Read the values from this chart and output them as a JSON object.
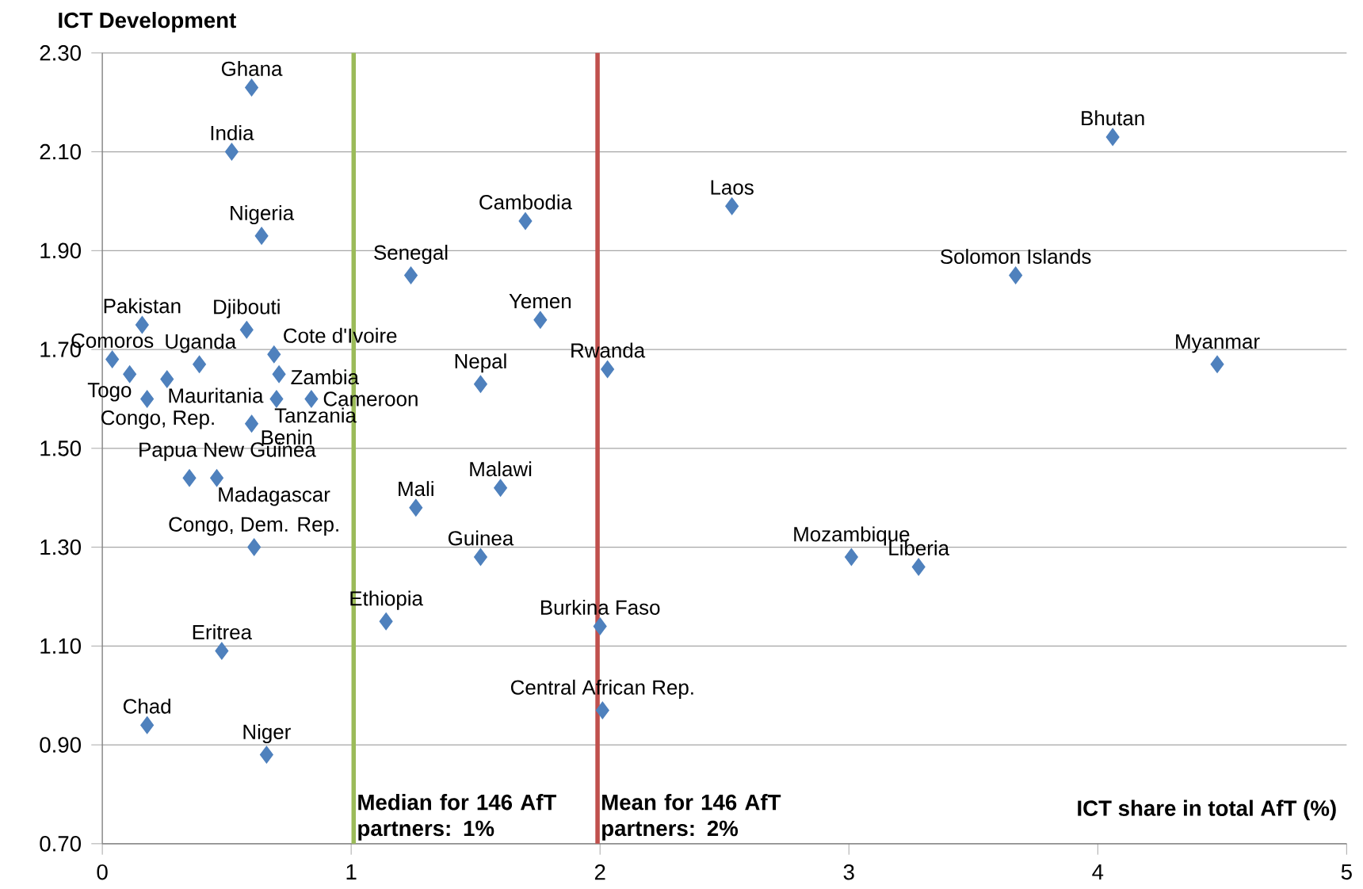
{
  "chart_data": {
    "type": "scatter",
    "xlabel": "ICT share in total AfT (%)",
    "ylabel": "ICT Development",
    "xlim": [
      0,
      5
    ],
    "ylim": [
      0.7,
      2.3
    ],
    "xticks": [
      0,
      1,
      2,
      3,
      4,
      5
    ],
    "yticks": [
      {
        "value": 0.7,
        "label": "0.70"
      },
      {
        "value": 0.9,
        "label": "0.90"
      },
      {
        "value": 1.1,
        "label": "1.10"
      },
      {
        "value": 1.3,
        "label": "1.30"
      },
      {
        "value": 1.5,
        "label": "1.50"
      },
      {
        "value": 1.7,
        "label": "1.70"
      },
      {
        "value": 1.9,
        "label": "1.90"
      },
      {
        "value": 2.1,
        "label": "2.10"
      },
      {
        "value": 2.3,
        "label": "2.30"
      }
    ],
    "grid": "y",
    "marker": "diamond",
    "series": [
      {
        "color": "#4f81bd",
        "x": [
          0.6,
          0.52,
          0.64,
          1.24,
          1.7,
          2.53,
          4.06,
          3.67,
          4.48,
          1.76,
          2.03,
          1.52,
          0.16,
          0.58,
          0.04,
          0.39,
          0.69,
          0.71,
          0.11,
          0.26,
          0.18,
          0.7,
          0.84,
          0.6,
          0.35,
          0.46,
          1.26,
          1.6,
          1.52,
          0.61,
          3.01,
          3.28,
          1.14,
          2.0,
          0.48,
          2.01,
          0.18,
          0.66
        ],
        "values": [
          2.23,
          2.1,
          1.93,
          1.85,
          1.96,
          1.99,
          2.13,
          1.85,
          1.67,
          1.76,
          1.66,
          1.63,
          1.75,
          1.74,
          1.68,
          1.67,
          1.69,
          1.65,
          1.65,
          1.64,
          1.6,
          1.6,
          1.6,
          1.55,
          1.44,
          1.44,
          1.38,
          1.42,
          1.28,
          1.3,
          1.28,
          1.26,
          1.15,
          1.14,
          1.09,
          0.97,
          0.94,
          0.88
        ]
      }
    ],
    "ref_lines": [
      {
        "axis": "x",
        "value": 1.01,
        "label": "Median  for 146 AfT partners: 1%",
        "color": "#9bbb59"
      },
      {
        "axis": "x",
        "value": 1.99,
        "label": "Mean  for 146 AfT partners: 2%",
        "color": "#c0504d"
      }
    ],
    "annotations": [
      {
        "text": "Ghana",
        "x": 0.6,
        "y": 2.23
      },
      {
        "text": "India",
        "x": 0.52,
        "y": 2.1
      },
      {
        "text": "Nigeria",
        "x": 0.64,
        "y": 1.93
      },
      {
        "text": "Senegal",
        "x": 1.24,
        "y": 1.85
      },
      {
        "text": "Cambodia",
        "x": 1.7,
        "y": 1.96
      },
      {
        "text": "Laos",
        "x": 2.53,
        "y": 1.99
      },
      {
        "text": "Bhutan",
        "x": 4.06,
        "y": 2.13
      },
      {
        "text": "Solomon Islands",
        "x": 3.67,
        "y": 1.85
      },
      {
        "text": "Myanmar",
        "x": 4.48,
        "y": 1.67
      },
      {
        "text": "Yemen",
        "x": 1.76,
        "y": 1.76
      },
      {
        "text": "Rwanda",
        "x": 2.03,
        "y": 1.66
      },
      {
        "text": "Nepal",
        "x": 1.52,
        "y": 1.63
      },
      {
        "text": "Pakistan",
        "x": 0.16,
        "y": 1.75
      },
      {
        "text": "Djibouti",
        "x": 0.58,
        "y": 1.74
      },
      {
        "text": "Comoros",
        "x": 0.04,
        "y": 1.68
      },
      {
        "text": "Uganda",
        "x": 0.39,
        "y": 1.67
      },
      {
        "text": "Cote d'Ivoire",
        "x": 0.69,
        "y": 1.69
      },
      {
        "text": "Zambia",
        "x": 0.71,
        "y": 1.65
      },
      {
        "text": "Togo",
        "x": 0.11,
        "y": 1.65
      },
      {
        "text": "Mauritania",
        "x": 0.26,
        "y": 1.64
      },
      {
        "text": "Congo, Rep.",
        "x": 0.18,
        "y": 1.6
      },
      {
        "text": "Tanzania",
        "x": 0.7,
        "y": 1.6
      },
      {
        "text": "Cameroon",
        "x": 0.84,
        "y": 1.6
      },
      {
        "text": "Benin",
        "x": 0.6,
        "y": 1.55
      },
      {
        "text": "Papua New Guinea",
        "x": 0.35,
        "y": 1.44
      },
      {
        "text": "Madagascar",
        "x": 0.46,
        "y": 1.44
      },
      {
        "text": "Mali",
        "x": 1.26,
        "y": 1.38
      },
      {
        "text": "Malawi",
        "x": 1.6,
        "y": 1.42
      },
      {
        "text": "Guinea",
        "x": 1.52,
        "y": 1.28
      },
      {
        "text": "Congo, Dem. Rep.",
        "x": 0.61,
        "y": 1.3
      },
      {
        "text": "Mozambique",
        "x": 3.01,
        "y": 1.28
      },
      {
        "text": "Liberia",
        "x": 3.28,
        "y": 1.26
      },
      {
        "text": "Ethiopia",
        "x": 1.14,
        "y": 1.15
      },
      {
        "text": "Burkina Faso",
        "x": 2.0,
        "y": 1.14
      },
      {
        "text": "Eritrea",
        "x": 0.48,
        "y": 1.09
      },
      {
        "text": "Central African Rep.",
        "x": 2.01,
        "y": 0.97
      },
      {
        "text": "Chad",
        "x": 0.18,
        "y": 0.94
      },
      {
        "text": "Niger",
        "x": 0.66,
        "y": 0.88
      }
    ]
  }
}
